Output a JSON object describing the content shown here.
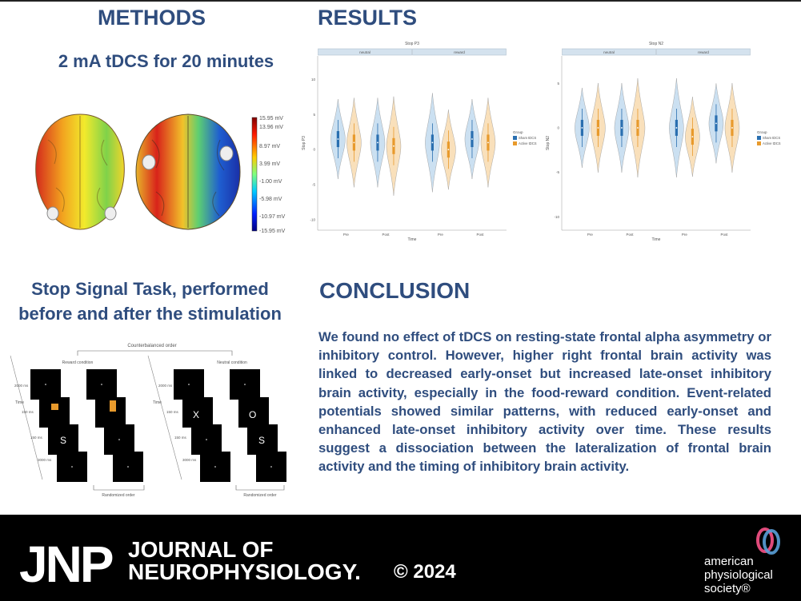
{
  "headings": {
    "methods": "METHODS",
    "results": "RESULTS",
    "tdcs": "2 mA tDCS for 20 minutes",
    "stop_line1": "Stop Signal Task, performed",
    "stop_line2": "before and after the stimulation",
    "conclusion": "CONCLUSION"
  },
  "conclusion_text": "We found no effect of tDCS on resting-state frontal alpha asymmetry or inhibitory control. However, higher right frontal brain activity was linked to decreased early-onset but increased late-onset inhibitory brain activity, especially in the food-reward condition. Event-related potentials showed similar patterns, with reduced early-onset and enhanced late-onset inhibitory activity over time. These results suggest a dissociation between the lateralization of frontal brain activity and the timing of inhibitory brain activity.",
  "colorbar": {
    "labels": [
      "15.95 mV",
      "13.96 mV",
      "8.97 mV",
      "3.99 mV",
      "-1.00 mV",
      "-5.98 mV",
      "-10.97 mV",
      "-15.95 mV"
    ]
  },
  "task": {
    "top": "Counterbalanced order",
    "reward": "Reward condition",
    "neutral": "Neutral condition",
    "rand": "Randomized order",
    "time": "Time",
    "t1": "2000 ms",
    "t2": "150 ms",
    "t3": "150 ms",
    "t4": "3000 ms",
    "letter_s": "S",
    "letter_x": "X",
    "letter_o": "O"
  },
  "chart_data": [
    {
      "type": "violin",
      "title": "Stop P3",
      "panels": [
        "neutral",
        "reward"
      ],
      "categories": [
        "Pre",
        "Post"
      ],
      "xlabel": "Time",
      "ylabel": "Stop P3",
      "yticks": [
        10,
        5,
        0,
        -5,
        -10
      ],
      "legend_title": "Group",
      "series": [
        {
          "name": "Sham tDCS",
          "color": "#2a6fb0",
          "medians": [
            [
              1.5,
              1.0
            ],
            [
              1.0,
              1.5
            ]
          ]
        },
        {
          "name": "Active tDCS",
          "color": "#e89a2c",
          "medians": [
            [
              1.0,
              0.5
            ],
            [
              0.0,
              1.0
            ]
          ]
        }
      ]
    },
    {
      "type": "violin",
      "title": "Stop N2",
      "panels": [
        "neutral",
        "reward"
      ],
      "categories": [
        "Pre",
        "Post"
      ],
      "xlabel": "Time",
      "ylabel": "Stop N2",
      "yticks": [
        5,
        0,
        -5,
        -10
      ],
      "legend_title": "Group",
      "series": [
        {
          "name": "Sham tDCS",
          "color": "#2a6fb0",
          "medians": [
            [
              0.0,
              0.0
            ],
            [
              0.0,
              0.5
            ]
          ]
        },
        {
          "name": "Active tDCS",
          "color": "#e89a2c",
          "medians": [
            [
              0.0,
              0.0
            ],
            [
              -1.0,
              0.0
            ]
          ]
        }
      ]
    }
  ],
  "footer": {
    "logo": "JNP",
    "journal_line1": "JOURNAL OF",
    "journal_line2": "NEUROPHYSIOLOGY.",
    "copyright": "© 2024",
    "aps_line1": "american",
    "aps_line2": "physiological",
    "aps_line3": "society®"
  }
}
